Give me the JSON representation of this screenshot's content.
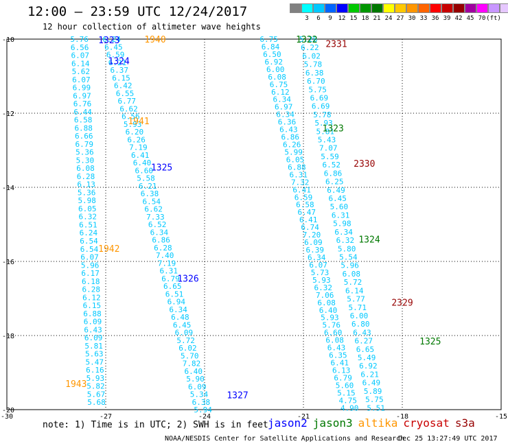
{
  "header": {
    "title": "12:00 – 23:59 UTC 12/24/2017",
    "subtitle": "12 hour collection of altimeter wave heights"
  },
  "colorbar": {
    "colors": [
      "#808080",
      "#00ffff",
      "#00c8ff",
      "#0064ff",
      "#0000ff",
      "#00c800",
      "#009600",
      "#007800",
      "#ffff00",
      "#ffc800",
      "#ff9600",
      "#ff6400",
      "#ff0000",
      "#c80000",
      "#960000",
      "#a000a0",
      "#ff00ff",
      "#c896ff",
      "#e6c8ff",
      "#000000"
    ],
    "tick_labels": [
      "3",
      "6",
      "9",
      "12",
      "15",
      "18",
      "21",
      "24",
      "27",
      "30",
      "33",
      "36",
      "39",
      "42",
      "45",
      "70",
      "(ft)"
    ]
  },
  "chart_data": {
    "type": "scatter",
    "title": "12:00 – 23:59 UTC 12/24/2017",
    "xlabel": "",
    "ylabel": "",
    "xlim": [
      -30,
      -15
    ],
    "ylim": [
      -20,
      -10
    ],
    "x_ticks": [
      "-30",
      "-27",
      "-24",
      "-21",
      "-18",
      "-15"
    ],
    "y_ticks": [
      "-10",
      "-12",
      "-14",
      "-16",
      "-18",
      "-20"
    ],
    "grid": true,
    "series_colors": {
      "jason2": "#0000ff",
      "jason3": "#007800",
      "altika": "#ff9600",
      "cryosat": "#c80000",
      "s3a": "#960000"
    },
    "swh_color": "#00c8ff",
    "tracks": [
      {
        "values": [
          "5.76",
          "6.56",
          "6.07",
          "6.14",
          "5.62",
          "6.07",
          "6.99",
          "6.97",
          "6.76",
          "6.44",
          "6.58",
          "6.88",
          "6.66",
          "6.79",
          "5.36",
          "5.30",
          "6.08",
          "6.28",
          "6.13",
          "5.36",
          "5.98",
          "6.05",
          "6.32",
          "6.51",
          "6.24",
          "6.54",
          "6.54",
          "6.07",
          "5.96",
          "6.17",
          "6.18",
          "6.28",
          "6.12",
          "6.15",
          "6.88",
          "6.09",
          "6.43",
          "6.09",
          "5.81",
          "5.63",
          "5.47",
          "6.16",
          "5.93",
          "5.82",
          "5.67",
          "5.68"
        ],
        "lon": [
          -27.8,
          -27.28
        ],
        "lat": [
          -10.0,
          -19.8
        ]
      },
      {
        "values": [
          "6.24",
          "6.45",
          "6.59",
          "6.21",
          "6.37",
          "6.15",
          "6.42",
          "6.55",
          "6.77",
          "6.62",
          "6.56",
          "5.93",
          "6.20",
          "6.26",
          "7.19",
          "6.41",
          "6.40",
          "6.60",
          "5.58",
          "6.21",
          "6.38",
          "6.54",
          "6.62",
          "7.33",
          "6.52",
          "6.34",
          "6.86",
          "6.28",
          "7.40",
          "7.19",
          "6.31",
          "6.79",
          "6.65",
          "6.51",
          "6.94",
          "6.34",
          "6.48",
          "6.45",
          "6.09",
          "5.72",
          "6.02",
          "5.70",
          "7.82",
          "6.40",
          "5.90",
          "6.09",
          "5.34",
          "6.38",
          "5.94"
        ],
        "lon": [
          -26.82,
          -24.05
        ],
        "lat": [
          -10.0,
          -20.0
        ]
      },
      {
        "values": [
          "6.75",
          "6.84",
          "6.50",
          "6.92",
          "6.00",
          "6.08",
          "6.75",
          "6.12",
          "6.34",
          "6.97",
          "6.34",
          "6.36",
          "6.43",
          "6.86",
          "6.26",
          "5.99",
          "6.05",
          "6.88",
          "6.31",
          "7.32",
          "6.41",
          "6.59",
          "6.58",
          "6.47",
          "6.41",
          "6.74",
          "7.20",
          "6.09",
          "6.39",
          "6.34",
          "6.07",
          "5.73",
          "5.93",
          "6.32",
          "7.06",
          "6.08",
          "6.40",
          "5.93",
          "5.76",
          "6.60",
          "6.08",
          "6.43",
          "6.35",
          "6.41",
          "6.13",
          "6.79",
          "5.60",
          "5.15",
          "4.75",
          "4.90"
        ],
        "lon": [
          -22.05,
          -19.6
        ],
        "lat": [
          -10.0,
          -19.95
        ]
      },
      {
        "values": [
          "5.28",
          "6.22",
          "6.02",
          "5.78",
          "6.38",
          "6.70",
          "5.75",
          "6.69",
          "6.69",
          "5.78",
          "5.93",
          "5.81",
          "5.43",
          "7.07",
          "5.59",
          "6.52",
          "6.86",
          "6.25",
          "6.49",
          "6.45",
          "5.60",
          "6.31",
          "5.98",
          "6.34",
          "6.32",
          "5.80",
          "5.54",
          "5.96",
          "6.08",
          "5.72",
          "6.14",
          "5.77",
          "5.71",
          "6.00",
          "6.80",
          "6.43",
          "6.27",
          "6.65",
          "5.49",
          "6.92",
          "6.21",
          "6.49",
          "5.89",
          "5.75",
          "5.51"
        ],
        "lon": [
          -20.85,
          -18.8
        ],
        "lat": [
          -10.0,
          -19.95
        ]
      }
    ],
    "pass_labels": [
      {
        "text": "1323",
        "mission": "jason2",
        "lon": -26.9,
        "lat": -10.02
      },
      {
        "text": "1940",
        "mission": "altika",
        "lon": -25.5,
        "lat": -10.0
      },
      {
        "text": "1324",
        "mission": "jason2",
        "lon": -26.6,
        "lat": -10.58
      },
      {
        "text": "1941",
        "mission": "altika",
        "lon": -26.0,
        "lat": -12.2
      },
      {
        "text": "1325",
        "mission": "jason2",
        "lon": -25.3,
        "lat": -13.45
      },
      {
        "text": "1942",
        "mission": "altika",
        "lon": -26.9,
        "lat": -15.65
      },
      {
        "text": "1326",
        "mission": "jason2",
        "lon": -24.5,
        "lat": -16.45
      },
      {
        "text": "1943",
        "mission": "altika",
        "lon": -27.9,
        "lat": -19.3
      },
      {
        "text": "1327",
        "mission": "jason2",
        "lon": -23.0,
        "lat": -19.6
      },
      {
        "text": "1322",
        "mission": "jason3",
        "lon": -20.9,
        "lat": -10.0
      },
      {
        "text": "2331",
        "mission": "s3a",
        "lon": -20.0,
        "lat": -10.12
      },
      {
        "text": "1323",
        "mission": "jason3",
        "lon": -20.1,
        "lat": -12.4
      },
      {
        "text": "2330",
        "mission": "s3a",
        "lon": -19.15,
        "lat": -13.35
      },
      {
        "text": "1324",
        "mission": "jason3",
        "lon": -19.0,
        "lat": -15.4
      },
      {
        "text": "2329",
        "mission": "s3a",
        "lon": -18.0,
        "lat": -17.1
      },
      {
        "text": "1325",
        "mission": "jason3",
        "lon": -17.15,
        "lat": -18.15
      }
    ]
  },
  "footer": {
    "note": "note: 1) Time is in UTC; 2) SWH is in feet",
    "legend": [
      {
        "label": "jason2",
        "color": "#0000ff"
      },
      {
        "label": "jason3",
        "color": "#007800"
      },
      {
        "label": "altika",
        "color": "#ff9600"
      },
      {
        "label": "cryosat",
        "color": "#c80000"
      },
      {
        "label": "s3a",
        "color": "#960000"
      }
    ],
    "credit": "NOAA/NESDIS Center for Satellite Applications and Research",
    "timestamp": "Dec 25 13:27:49 UTC 2017"
  }
}
